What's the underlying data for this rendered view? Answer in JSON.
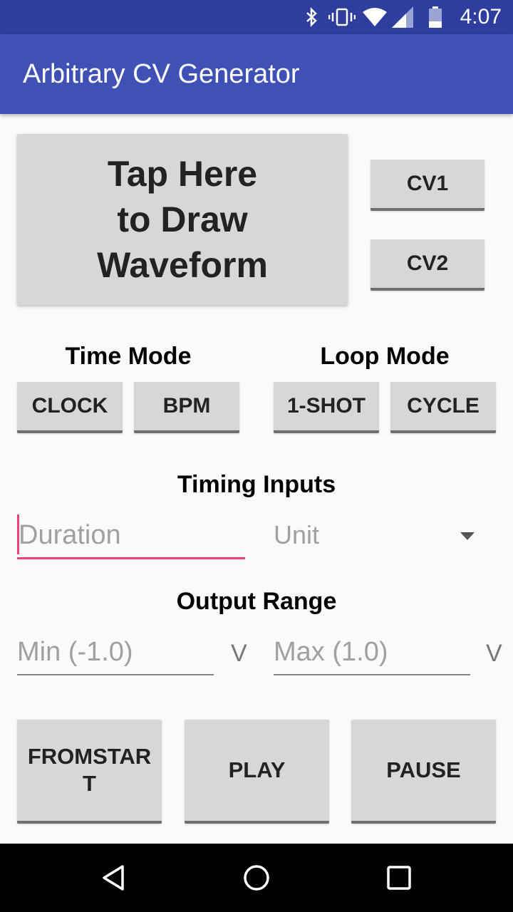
{
  "status_bar": {
    "time": "4:07",
    "icons": [
      "bluetooth-icon",
      "vibrate-icon",
      "wifi-icon",
      "signal-icon",
      "battery-icon"
    ]
  },
  "app_bar": {
    "title": "Arbitrary CV Generator"
  },
  "draw_button": {
    "label": "Tap Here\nto Draw\nWaveform"
  },
  "cv_buttons": {
    "cv1": "CV1",
    "cv2": "CV2"
  },
  "time_mode": {
    "heading": "Time Mode",
    "clock": "CLOCK",
    "bpm": "BPM"
  },
  "loop_mode": {
    "heading": "Loop Mode",
    "one_shot": "1-SHOT",
    "cycle": "CYCLE"
  },
  "timing_inputs": {
    "heading": "Timing Inputs",
    "duration_placeholder": "Duration",
    "unit_selected": "Unit"
  },
  "output_range": {
    "heading": "Output Range",
    "min_placeholder": "Min (-1.0)",
    "min_unit": "V",
    "max_placeholder": "Max (1.0)",
    "max_unit": "V"
  },
  "transport": {
    "from_start": "FROMSTAR\nT",
    "play": "PLAY",
    "pause": "PAUSE"
  },
  "colors": {
    "primary": "#3f51b5",
    "primary_dark": "#2f3e9e",
    "accent": "#ec407a",
    "button": "#d6d7d7"
  }
}
